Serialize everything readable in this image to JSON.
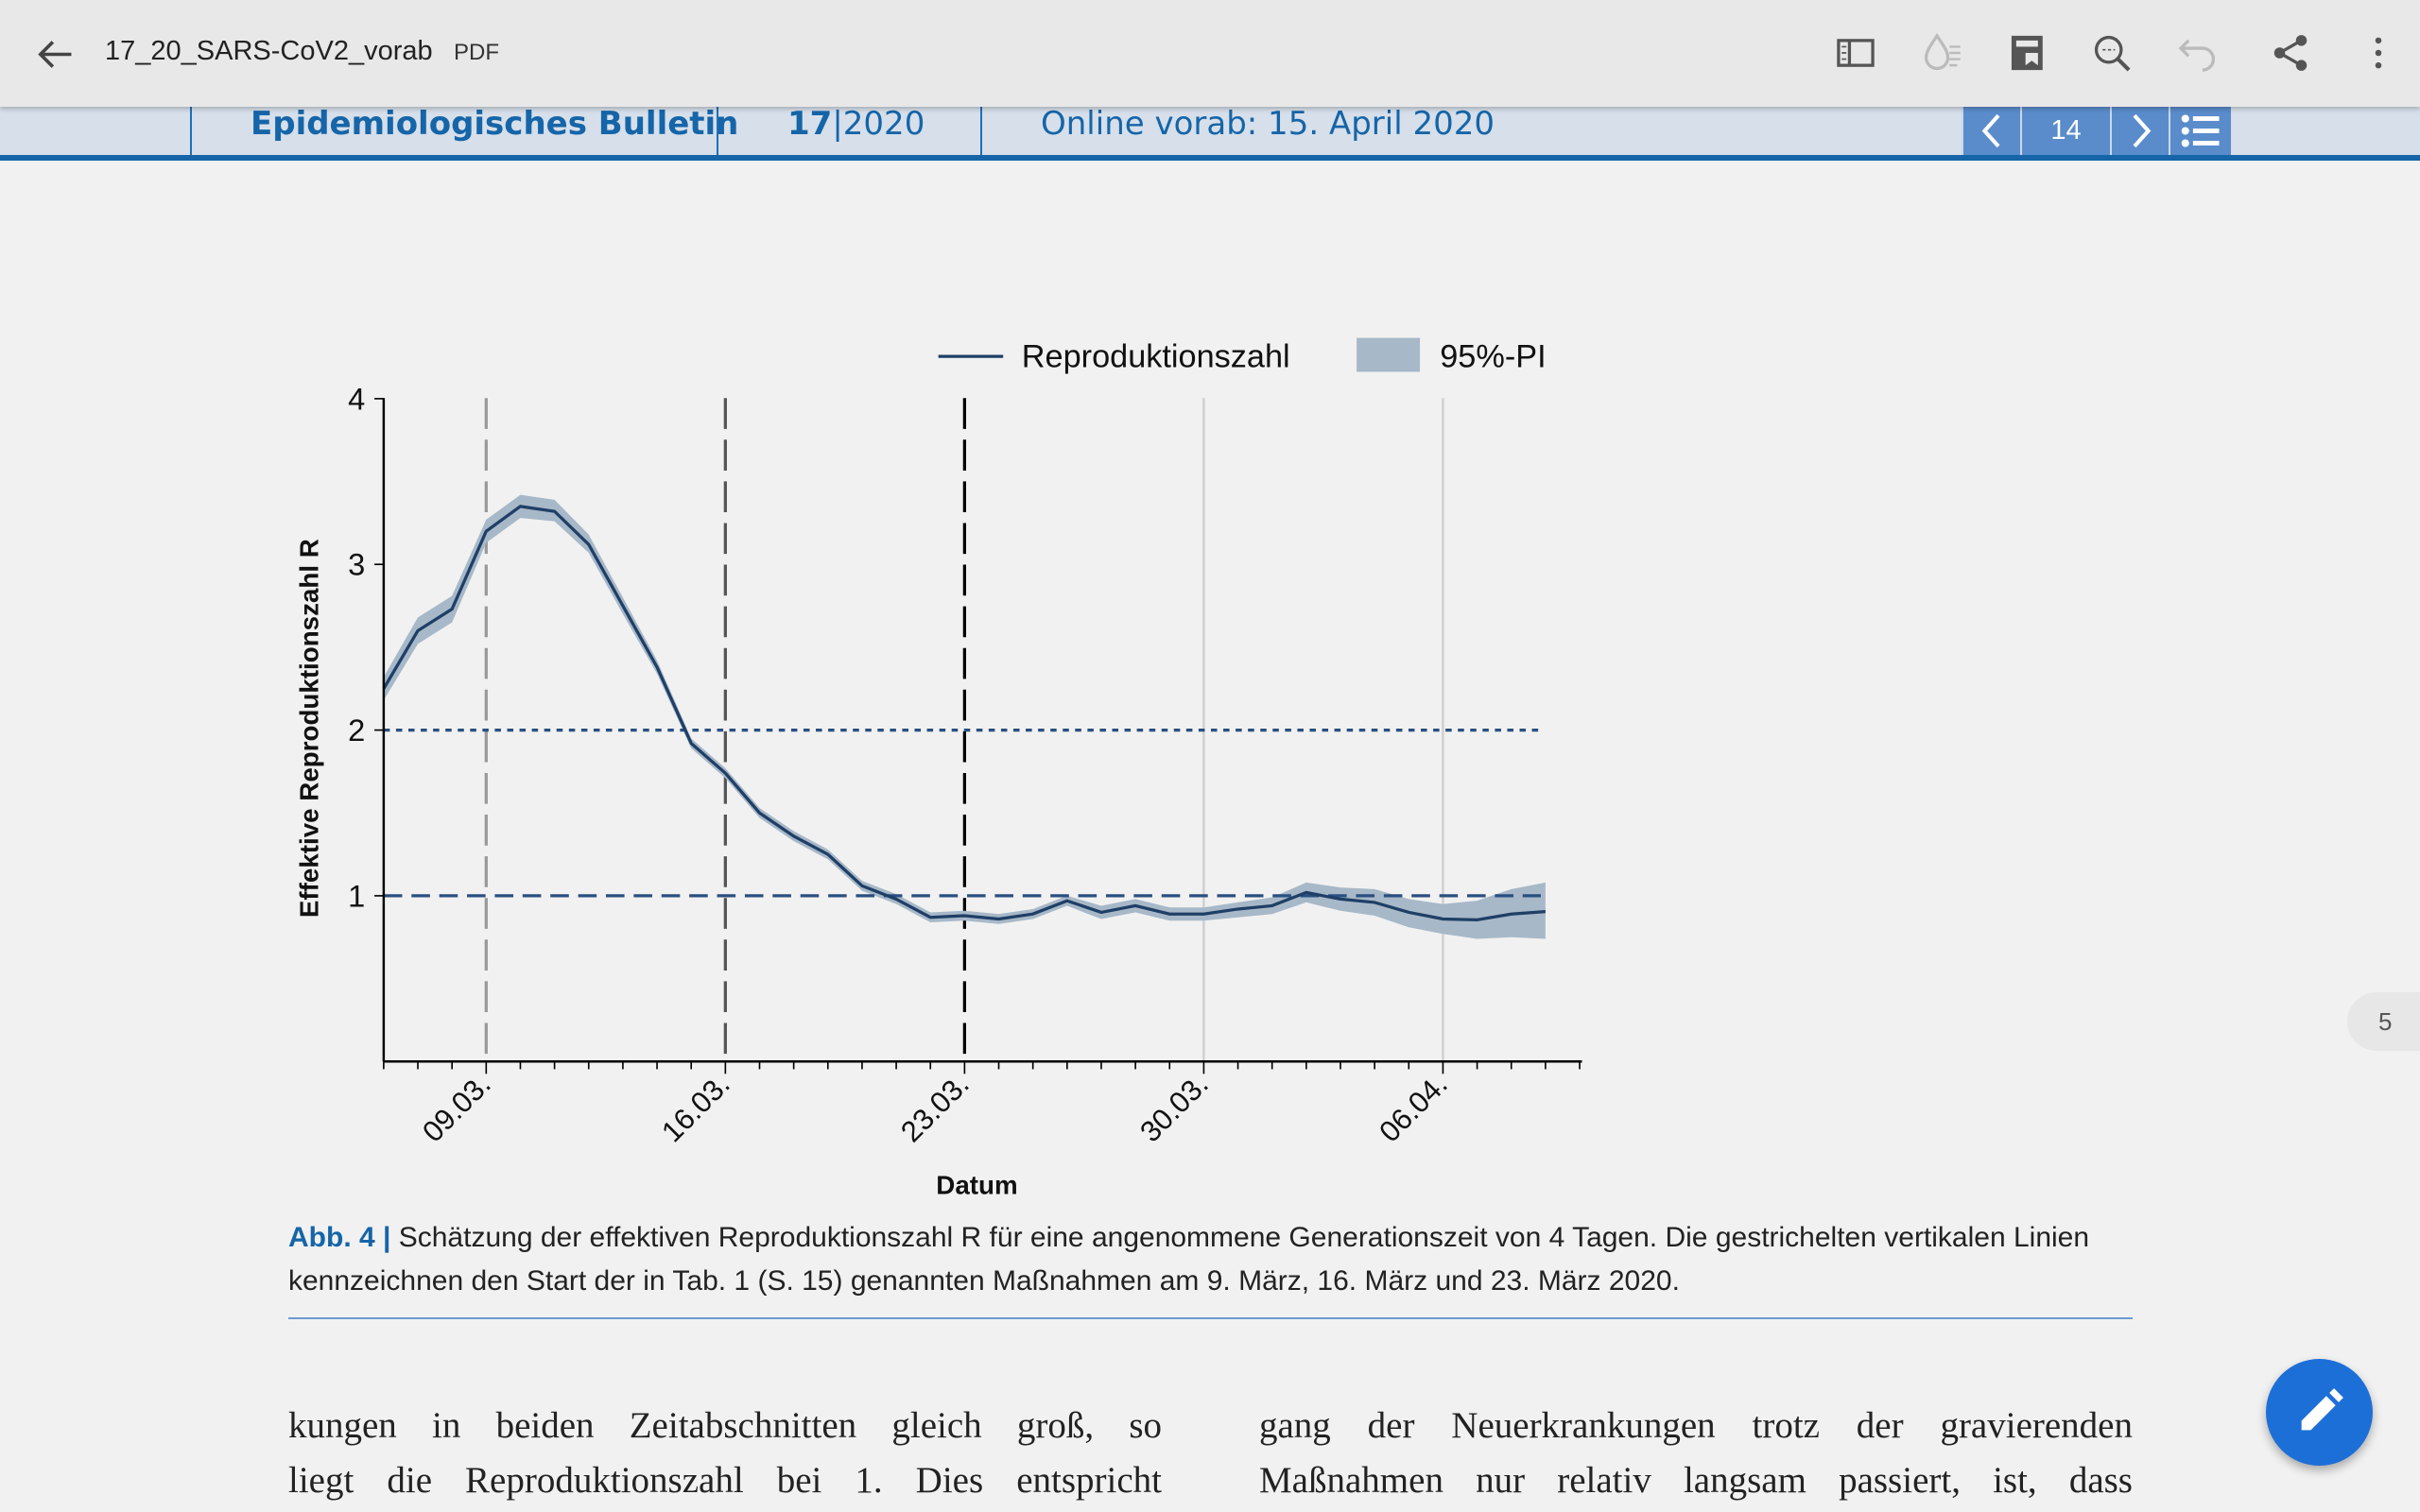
{
  "toolbar": {
    "title": "17_20_SARS-CoV2_vorab",
    "file_type": "PDF",
    "icons": [
      "back-arrow-icon",
      "sidebar-icon",
      "ink-drop-icon",
      "save-icon",
      "search-icon",
      "undo-icon",
      "share-icon",
      "more-icon"
    ]
  },
  "header": {
    "journal": "Epidemiologisches Bulletin",
    "issue_num": "17",
    "issue_sep": "|",
    "issue_year": "2020",
    "online": "Online vorab: 15. April 2020",
    "page": "14"
  },
  "colors": {
    "accent": "#1565a8",
    "line": "#1f3f66",
    "band": "#a7b8c8",
    "fab": "#1d6fd8"
  },
  "chart_data": {
    "type": "line",
    "legend": [
      "Reproduktionszahl",
      "95%-PI"
    ],
    "legend_position": "top",
    "xlabel": "Datum",
    "ylabel": "Effektive Reproduktionszahl R",
    "ylim": [
      0,
      4
    ],
    "yticks": [
      "1",
      "2",
      "3",
      "4"
    ],
    "xticks": [
      "09.03.",
      "16.03.",
      "23.03.",
      "30.03.",
      "06.04."
    ],
    "start_date": "06.03.",
    "x_days": [
      0,
      1,
      2,
      3,
      4,
      5,
      6,
      7,
      8,
      9,
      10,
      11,
      12,
      13,
      14,
      15,
      16,
      17,
      18,
      19,
      20,
      21,
      22,
      23,
      24,
      25,
      26,
      27,
      28,
      29,
      30,
      31,
      32,
      33,
      34
    ],
    "values": [
      2.25,
      2.6,
      2.73,
      3.2,
      3.35,
      3.32,
      3.12,
      2.75,
      2.38,
      1.92,
      1.74,
      1.5,
      1.36,
      1.25,
      1.06,
      0.98,
      0.87,
      0.88,
      0.86,
      0.89,
      0.97,
      0.9,
      0.94,
      0.89,
      0.89,
      0.92,
      0.94,
      1.02,
      0.98,
      0.96,
      0.9,
      0.86,
      0.855,
      0.89,
      0.905
    ],
    "lower": [
      2.18,
      2.52,
      2.65,
      3.13,
      3.28,
      3.26,
      3.07,
      2.7,
      2.34,
      1.89,
      1.71,
      1.47,
      1.33,
      1.22,
      1.03,
      0.95,
      0.84,
      0.85,
      0.83,
      0.86,
      0.94,
      0.86,
      0.9,
      0.85,
      0.85,
      0.87,
      0.89,
      0.96,
      0.91,
      0.88,
      0.81,
      0.77,
      0.74,
      0.75,
      0.74
    ],
    "upper": [
      2.32,
      2.68,
      2.81,
      3.27,
      3.42,
      3.39,
      3.18,
      2.8,
      2.42,
      1.95,
      1.77,
      1.53,
      1.39,
      1.28,
      1.09,
      1.01,
      0.9,
      0.91,
      0.89,
      0.92,
      1.0,
      0.94,
      0.98,
      0.93,
      0.93,
      0.96,
      0.99,
      1.08,
      1.05,
      1.04,
      0.98,
      0.95,
      0.97,
      1.04,
      1.08
    ],
    "vlines_dashed": [
      3,
      10,
      17
    ],
    "vlines_grid": [
      24,
      31
    ],
    "hlines": [
      {
        "y": 2,
        "style": "dotted"
      },
      {
        "y": 1,
        "style": "dashed"
      }
    ]
  },
  "caption": {
    "label": "Abb. 4 |",
    "text": " Schätzung der effektiven Reproduktionszahl R für eine angenommene Generationszeit von 4 Tagen. Die gestrichelten vertikalen Linien kennzeichnen den Start der in Tab. 1 (S. 15) genannten Maßnahmen am 9. März, 16. März und 23. März 2020."
  },
  "body": {
    "left": [
      "kungen in beiden Zeitabschnitten gleich groß, so",
      "liegt die Reproduktionszahl bei 1. Dies entspricht"
    ],
    "right": [
      "gang der Neuerkrankungen trotz der gravierenden",
      "Maßnahmen nur relativ langsam passiert, ist, dass"
    ]
  },
  "page_indicator": "5"
}
